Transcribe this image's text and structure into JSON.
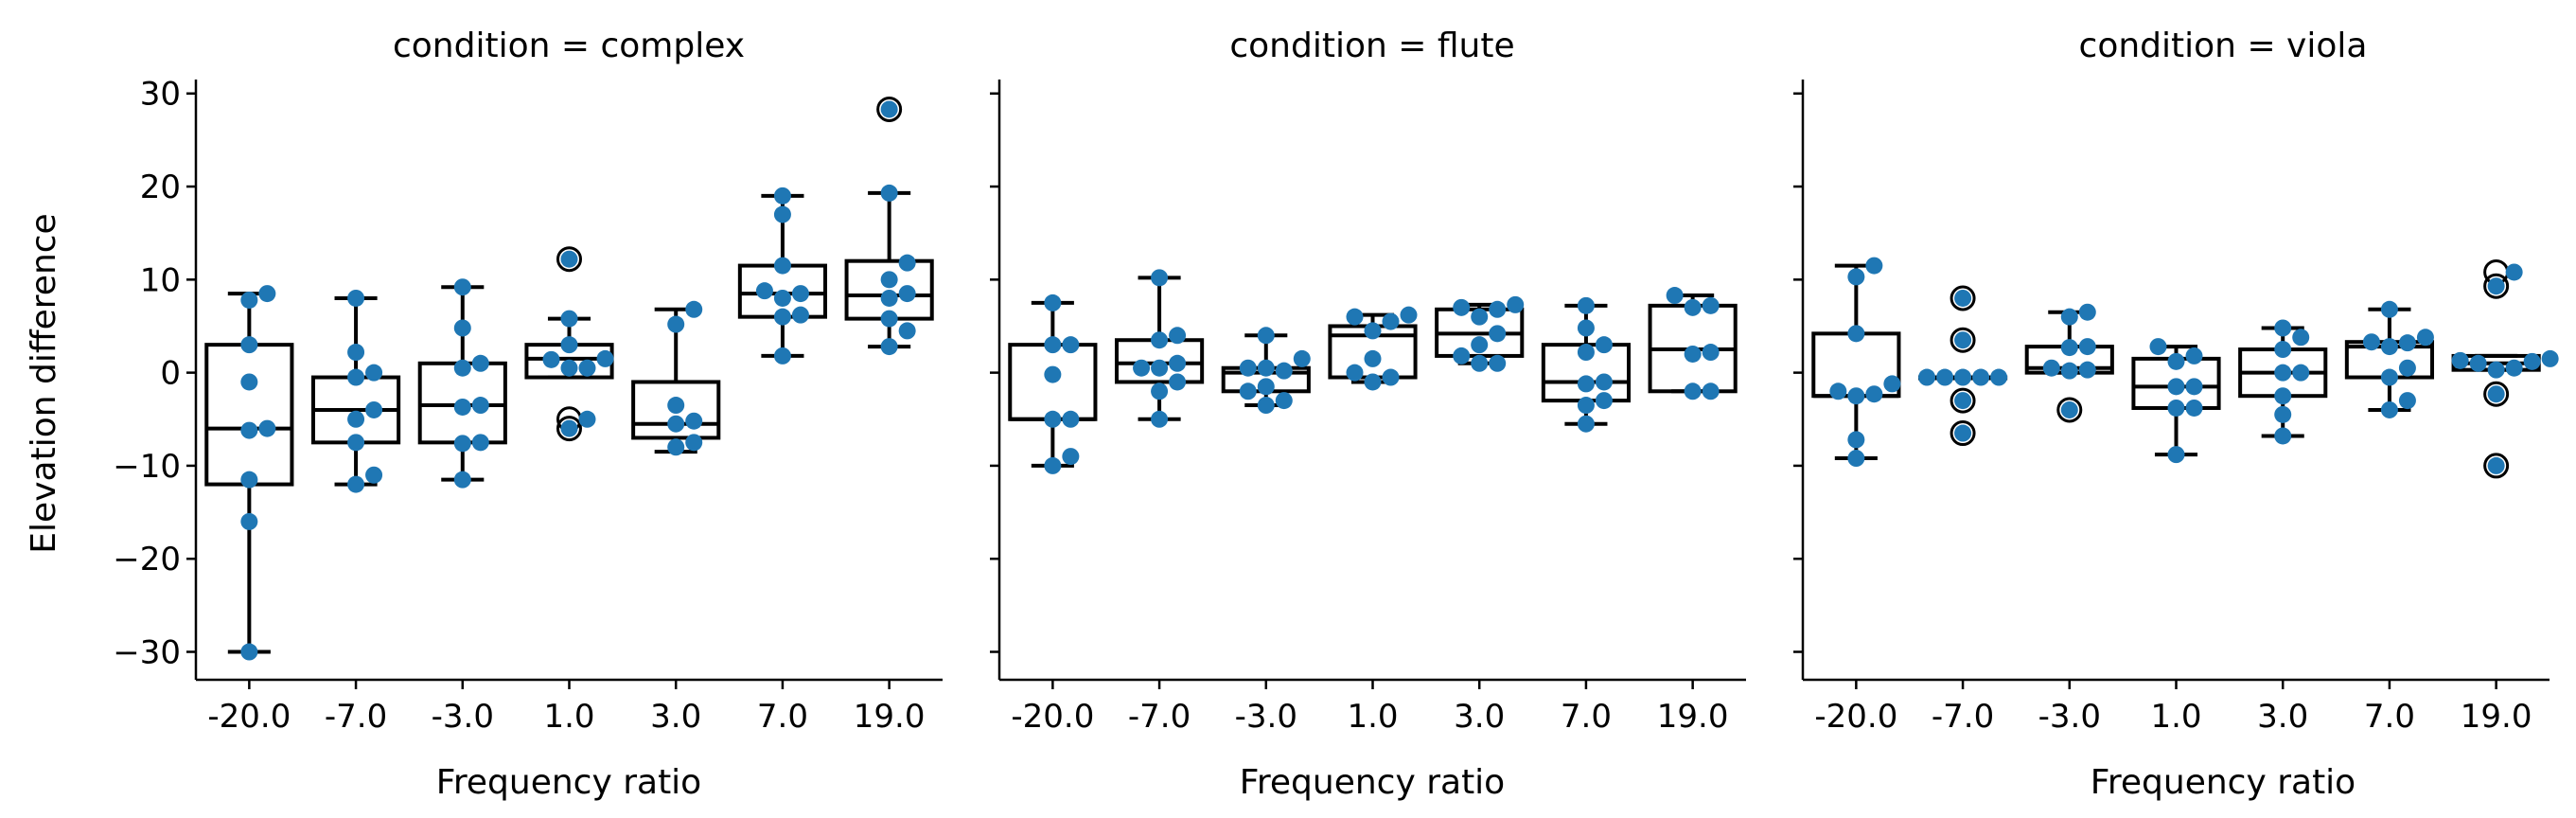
{
  "chart_data": {
    "type": "boxplot with swarm points",
    "facets": [
      {
        "title": "condition = complex",
        "categories": [
          "-20.0",
          "-7.0",
          "-3.0",
          "1.0",
          "3.0",
          "7.0",
          "19.0"
        ],
        "boxes": [
          {
            "q1": -12,
            "median": -6,
            "q3": 3,
            "whisker_low": -30,
            "whisker_high": 8.5,
            "outliers": []
          },
          {
            "q1": -7.5,
            "median": -4,
            "q3": -0.5,
            "whisker_low": -12,
            "whisker_high": 8,
            "outliers": []
          },
          {
            "q1": -7.5,
            "median": -3.5,
            "q3": 1,
            "whisker_low": -11.5,
            "whisker_high": 9.2,
            "outliers": []
          },
          {
            "q1": -0.5,
            "median": 1.5,
            "q3": 3,
            "whisker_low": -0.5,
            "whisker_high": 5.8,
            "outliers": [
              12.2,
              -5,
              -6
            ]
          },
          {
            "q1": -7,
            "median": -5.5,
            "q3": -1,
            "whisker_low": -8.5,
            "whisker_high": 6.8,
            "outliers": []
          },
          {
            "q1": 6,
            "median": 8.5,
            "q3": 11.5,
            "whisker_low": 1.8,
            "whisker_high": 19,
            "outliers": []
          },
          {
            "q1": 5.8,
            "median": 8.3,
            "q3": 12,
            "whisker_low": 2.8,
            "whisker_high": 19.3,
            "outliers": [
              28.3
            ]
          }
        ],
        "points": [
          [
            8.5,
            7.8,
            3,
            -1,
            -6,
            -6.2,
            -11.5,
            -16,
            -30
          ],
          [
            8,
            2.2,
            0,
            -0.5,
            -4,
            -5,
            -7.5,
            -11,
            -12
          ],
          [
            9.2,
            4.8,
            1,
            0.5,
            -3.5,
            -3.7,
            -7.5,
            -7.6,
            -11.5
          ],
          [
            12.2,
            5.8,
            3,
            1.5,
            1.4,
            0.5,
            0.5,
            -5,
            -6
          ],
          [
            6.8,
            5.2,
            -3.5,
            -5.2,
            -5.5,
            -7.5,
            -8
          ],
          [
            19,
            17,
            11.5,
            8.8,
            8.5,
            8,
            6.2,
            6,
            1.8
          ],
          [
            28.3,
            19.3,
            11.8,
            10,
            8.5,
            8,
            5.8,
            4.5,
            2.8
          ]
        ]
      },
      {
        "title": "condition = flute",
        "categories": [
          "-20.0",
          "-7.0",
          "-3.0",
          "1.0",
          "3.0",
          "7.0",
          "19.0"
        ],
        "boxes": [
          {
            "q1": -5,
            "median": -5,
            "q3": 3,
            "whisker_low": -10,
            "whisker_high": 7.5,
            "outliers": []
          },
          {
            "q1": -1,
            "median": 1,
            "q3": 3.5,
            "whisker_low": -5,
            "whisker_high": 10.2,
            "outliers": []
          },
          {
            "q1": -2,
            "median": 0,
            "q3": 0.5,
            "whisker_low": -3.5,
            "whisker_high": 4,
            "outliers": []
          },
          {
            "q1": -0.5,
            "median": 4,
            "q3": 5,
            "whisker_low": -1,
            "whisker_high": 6.2,
            "outliers": []
          },
          {
            "q1": 1.8,
            "median": 4.2,
            "q3": 6.8,
            "whisker_low": 1,
            "whisker_high": 7.3,
            "outliers": []
          },
          {
            "q1": -3,
            "median": -1,
            "q3": 3,
            "whisker_low": -5.5,
            "whisker_high": 7.2,
            "outliers": []
          },
          {
            "q1": -2,
            "median": 2.5,
            "q3": 7.2,
            "whisker_low": -2,
            "whisker_high": 8.3,
            "outliers": []
          }
        ],
        "points": [
          [
            7.5,
            3,
            3,
            -0.2,
            -5,
            -5,
            -9,
            -10
          ],
          [
            10.2,
            4,
            3.5,
            1,
            0.5,
            0.5,
            -1,
            -2,
            -5
          ],
          [
            4,
            1.5,
            0.5,
            0.5,
            0.2,
            -1.5,
            -2,
            -3,
            -3.5
          ],
          [
            6.2,
            6,
            5.5,
            4.5,
            1.5,
            0,
            -0.5,
            -1
          ],
          [
            7.3,
            7,
            6.8,
            6,
            4.2,
            3,
            1.8,
            1,
            1
          ],
          [
            7.2,
            4.8,
            3,
            2.2,
            -1,
            -1.2,
            -3,
            -3.5,
            -5.5
          ],
          [
            8.3,
            7.2,
            7,
            2.2,
            2,
            -2,
            -2
          ]
        ]
      },
      {
        "title": "condition = viola",
        "categories": [
          "-20.0",
          "-7.0",
          "-3.0",
          "1.0",
          "3.0",
          "7.0",
          "19.0"
        ],
        "boxes": [
          {
            "q1": -2.5,
            "median": -2.5,
            "q3": 4.2,
            "whisker_low": -9.2,
            "whisker_high": 11.5,
            "outliers": []
          },
          {
            "q1": -0.5,
            "median": -0.5,
            "q3": -0.5,
            "whisker_low": -0.5,
            "whisker_high": -0.5,
            "outliers": [
              8,
              3.5,
              -3,
              -6.5
            ]
          },
          {
            "q1": 0,
            "median": 0.5,
            "q3": 2.8,
            "whisker_low": 0,
            "whisker_high": 6.5,
            "outliers": [
              -4
            ]
          },
          {
            "q1": -3.8,
            "median": -1.5,
            "q3": 1.5,
            "whisker_low": -8.8,
            "whisker_high": 2.8,
            "outliers": []
          },
          {
            "q1": -2.5,
            "median": 0,
            "q3": 2.5,
            "whisker_low": -6.8,
            "whisker_high": 4.8,
            "outliers": []
          },
          {
            "q1": -0.5,
            "median": 2.8,
            "q3": 3.3,
            "whisker_low": -4,
            "whisker_high": 6.8,
            "outliers": []
          },
          {
            "q1": 0.3,
            "median": 1,
            "q3": 1.8,
            "whisker_low": 0.3,
            "whisker_high": 1.8,
            "outliers": [
              10.8,
              9.3,
              -2.3,
              -10
            ]
          }
        ],
        "points": [
          [
            11.5,
            10.3,
            4.2,
            -1.2,
            -2,
            -2.3,
            -2.5,
            -7.2,
            -9.2
          ],
          [
            8,
            3.5,
            -0.5,
            -0.5,
            -0.5,
            -0.5,
            -0.5,
            -3,
            -6.5
          ],
          [
            6.5,
            6,
            2.8,
            2.7,
            0.5,
            0.3,
            0.2,
            -4
          ],
          [
            2.8,
            1.8,
            1.2,
            -1.5,
            -1.5,
            -3.8,
            -3.8,
            -8.8
          ],
          [
            4.8,
            3.8,
            2.5,
            0,
            0,
            -2.5,
            -4.5,
            -6.8
          ],
          [
            6.8,
            3.8,
            3.3,
            3.2,
            2.8,
            0.5,
            -0.5,
            -3,
            -4
          ],
          [
            10.8,
            9.3,
            1.5,
            1.3,
            1.2,
            1,
            0.5,
            0.3,
            -2.3,
            -10
          ]
        ]
      }
    ],
    "xlabel": "Frequency ratio",
    "ylabel": "Elevation difference",
    "ylim": [
      -33,
      31.5
    ],
    "yticks": [
      "30",
      "20",
      "10",
      "0",
      "−10",
      "−20",
      "−30"
    ],
    "ytick_values": [
      30,
      20,
      10,
      0,
      -10,
      -20,
      -30
    ],
    "point_color": "#1f77b4",
    "box_color": "#000000",
    "grid": false,
    "legend": "none"
  }
}
